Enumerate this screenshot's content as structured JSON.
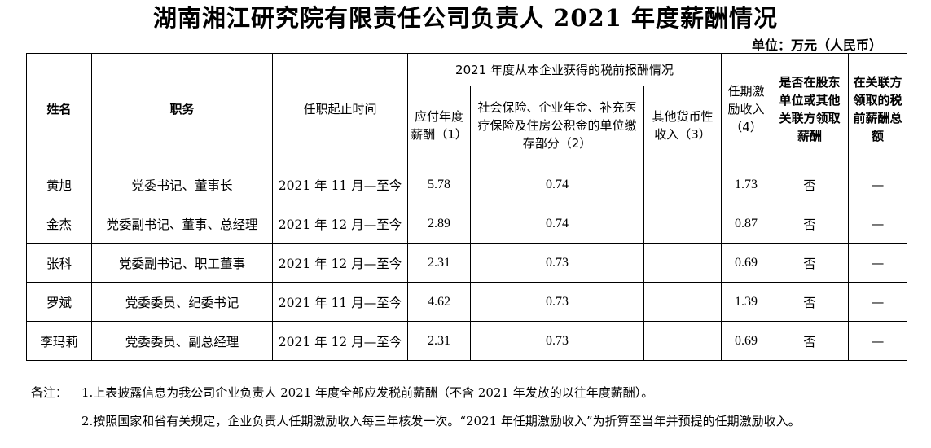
{
  "title": "湖南湘江研究院有限责任公司负责人 2021 年度薪酬情况",
  "unit": "单位：万元（人民币）",
  "headers": {
    "name": "姓名",
    "position": "职务",
    "term": "任职起止时间",
    "group": "2021 年度从本企业获得的税前报酬情况",
    "c1": "应付年度薪酬（1）",
    "c2": "社会保险、企业年金、补充医疗保险及住房公积金的单位缴存部分（2）",
    "c3": "其他货币性收入（3）",
    "c4": "任期激励收入（4）",
    "c5": "是否在股东单位或其他关联方领取薪酬",
    "c6": "在关联方领取的税前薪酬总额"
  },
  "rows": [
    {
      "name": "黄旭",
      "position": "党委书记、董事长",
      "term": "2021 年 11 月—至今",
      "salary": "5.78",
      "insurance": "0.74",
      "other": "",
      "incentive": "1.73",
      "shareholder": "否",
      "related": "—"
    },
    {
      "name": "金杰",
      "position": "党委副书记、董事、总经理",
      "term": "2021 年 12 月—至今",
      "salary": "2.89",
      "insurance": "0.74",
      "other": "",
      "incentive": "0.87",
      "shareholder": "否",
      "related": "—"
    },
    {
      "name": "张科",
      "position": "党委副书记、职工董事",
      "term": "2021 年 12 月—至今",
      "salary": "2.31",
      "insurance": "0.73",
      "other": "",
      "incentive": "0.69",
      "shareholder": "否",
      "related": "—"
    },
    {
      "name": "罗斌",
      "position": "党委委员、纪委书记",
      "term": "2021 年 11 月—至今",
      "salary": "4.62",
      "insurance": "0.73",
      "other": "",
      "incentive": "1.39",
      "shareholder": "否",
      "related": "—"
    },
    {
      "name": "李玛莉",
      "position": "党委委员、副总经理",
      "term": "2021 年 12 月—至今",
      "salary": "2.31",
      "insurance": "0.73",
      "other": "",
      "incentive": "0.69",
      "shareholder": "否",
      "related": "—"
    }
  ],
  "notes": {
    "label": "备注：",
    "items": [
      "1.上表披露信息为我公司企业负责人 2021 年度全部应发税前薪酬（不含 2021 年发放的以往年度薪酬）。",
      "2.按照国家和省有关规定，企业负责人任期激励收入每三年核发一次。“2021 年任期激励收入”为折算至当年并预提的任期激励收入。"
    ]
  }
}
